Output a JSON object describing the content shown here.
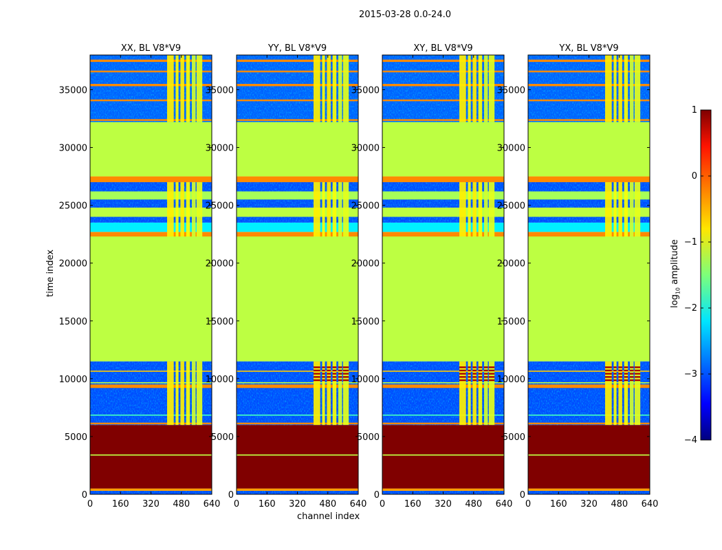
{
  "chart_data": {
    "type": "heatmap",
    "title": "2015-03-28 0.0-24.0",
    "xlabel": "channel index",
    "ylabel": "time index",
    "xlim": [
      0,
      640
    ],
    "ylim": [
      0,
      38000
    ],
    "xticks": [
      0,
      160,
      320,
      480,
      640
    ],
    "yticks": [
      0,
      5000,
      10000,
      15000,
      20000,
      25000,
      30000,
      35000
    ],
    "panels": [
      {
        "title": "XX, BL V8*V9"
      },
      {
        "title": "YY, BL V8*V9"
      },
      {
        "title": "XY, BL V8*V9"
      },
      {
        "title": "YX, BL V8*V9"
      }
    ],
    "time_bands": [
      {
        "t0": 0,
        "t1": 300,
        "value": -3.0,
        "noisy": true
      },
      {
        "t0": 300,
        "t1": 500,
        "value": -0.4
      },
      {
        "t0": 500,
        "t1": 6000,
        "value": 1.0
      },
      {
        "t0": 3350,
        "t1": 3450,
        "value": -1.2
      },
      {
        "t0": 6000,
        "t1": 11500,
        "value": -3.0,
        "noisy": true
      },
      {
        "t0": 6050,
        "t1": 6200,
        "value": -0.3
      },
      {
        "t0": 6800,
        "t1": 6900,
        "value": -1.8
      },
      {
        "t0": 9200,
        "t1": 9500,
        "value": -0.3
      },
      {
        "t0": 9600,
        "t1": 9700,
        "value": -1.2
      },
      {
        "t0": 10600,
        "t1": 10700,
        "value": -0.6
      },
      {
        "t0": 11500,
        "t1": 22300,
        "value": -1.2
      },
      {
        "t0": 22300,
        "t1": 22700,
        "value": -0.3
      },
      {
        "t0": 22700,
        "t1": 23500,
        "value": -2.2,
        "noisy": true
      },
      {
        "t0": 23500,
        "t1": 27000,
        "value": -3.0,
        "noisy": true
      },
      {
        "t0": 24000,
        "t1": 24800,
        "value": -1.2
      },
      {
        "t0": 25500,
        "t1": 26200,
        "value": -1.3
      },
      {
        "t0": 27000,
        "t1": 27500,
        "value": -0.3
      },
      {
        "t0": 27500,
        "t1": 32200,
        "value": -1.2
      },
      {
        "t0": 32200,
        "t1": 38000,
        "value": -2.9,
        "noisy": true
      },
      {
        "t0": 32300,
        "t1": 32450,
        "value": -0.3
      },
      {
        "t0": 34000,
        "t1": 34150,
        "value": -0.3
      },
      {
        "t0": 35300,
        "t1": 35500,
        "value": -0.3
      },
      {
        "t0": 36500,
        "t1": 36650,
        "value": -0.3
      },
      {
        "t0": 37400,
        "t1": 37600,
        "value": -0.3
      }
    ],
    "channel_stripes": [
      {
        "c0": 405,
        "c1": 440,
        "value": -0.8
      },
      {
        "c0": 450,
        "c1": 465,
        "value": -0.9
      },
      {
        "c0": 475,
        "c1": 495,
        "value": -0.8
      },
      {
        "c0": 505,
        "c1": 525,
        "value": -0.9
      },
      {
        "c0": 535,
        "c1": 555,
        "value": -1.1
      },
      {
        "c0": 560,
        "c1": 590,
        "value": -1.0
      }
    ],
    "stripe_time_ranges": [
      [
        6000,
        11500
      ],
      [
        22300,
        27000
      ],
      [
        32200,
        38000
      ]
    ],
    "hot_region": {
      "t0": 9800,
      "t1": 11200,
      "c0": 400,
      "c1": 590,
      "value": 0.3
    },
    "colorbar": {
      "label": "log10 amplitude",
      "label_main": "log",
      "label_sub": "10",
      "label_rest": " amplitude",
      "range": [
        -4,
        1
      ],
      "ticks": [
        1,
        0,
        -1,
        -2,
        -3,
        -4
      ],
      "tick_labels": [
        "1",
        "0",
        "−1",
        "−2",
        "−3",
        "−4"
      ],
      "colormap": "jet"
    }
  }
}
